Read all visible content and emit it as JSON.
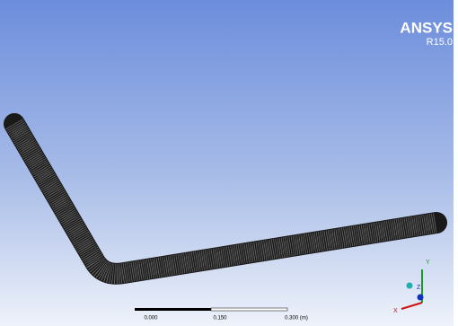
{
  "header": {
    "product": "ANSYS",
    "version": "R15.0"
  },
  "scale_bar": {
    "labels": [
      "0.000",
      "0.150",
      "0.300 (m)"
    ]
  },
  "triad": {
    "y": "Y",
    "z": "Z",
    "x": "X"
  }
}
